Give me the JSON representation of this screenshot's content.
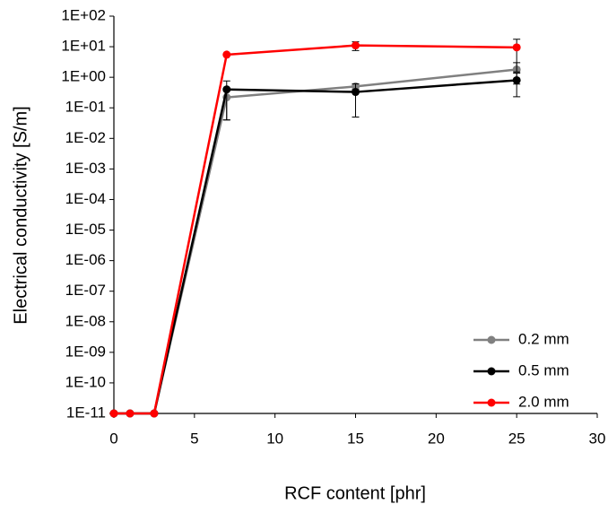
{
  "chart_data": {
    "type": "line",
    "x_label": "RCF content [phr]",
    "y_label": "Electrical conductivity [S/m]",
    "x": [
      0,
      1,
      2.5,
      7,
      15,
      25
    ],
    "xlim": [
      0,
      30
    ],
    "xticks": [
      0,
      5,
      10,
      15,
      20,
      25,
      30
    ],
    "ylim": [
      1e-11,
      100
    ],
    "log_y": true,
    "yticks": [
      {
        "value": 1e-11,
        "label": "1E-11"
      },
      {
        "value": 1e-10,
        "label": "1E-10"
      },
      {
        "value": 1e-09,
        "label": "1E-09"
      },
      {
        "value": 1e-08,
        "label": "1E-08"
      },
      {
        "value": 1e-07,
        "label": "1E-07"
      },
      {
        "value": 1e-06,
        "label": "1E-06"
      },
      {
        "value": 1e-05,
        "label": "1E-05"
      },
      {
        "value": 0.0001,
        "label": "1E-04"
      },
      {
        "value": 0.001,
        "label": "1E-03"
      },
      {
        "value": 0.01,
        "label": "1E-02"
      },
      {
        "value": 0.1,
        "label": "1E-01"
      },
      {
        "value": 1,
        "label": "1E+00"
      },
      {
        "value": 10,
        "label": "1E+01"
      },
      {
        "value": 100,
        "label": "1E+02"
      }
    ],
    "legend": "lower right",
    "series": [
      {
        "name": "0.2 mm",
        "color": "#808080",
        "values": [
          1e-11,
          1e-11,
          1e-11,
          0.22,
          0.5,
          1.8
        ],
        "errors": [
          null,
          null,
          null,
          0.18,
          0.1,
          1.2
        ]
      },
      {
        "name": "0.5 mm",
        "color": "#000000",
        "values": [
          1e-11,
          1e-11,
          1e-11,
          0.4,
          0.33,
          0.8
        ],
        "errors": [
          null,
          null,
          null,
          0.36,
          0.28,
          0.57
        ]
      },
      {
        "name": "2.0 mm",
        "color": "#ff0000",
        "values": [
          1e-11,
          1e-11,
          1e-11,
          5.5,
          11,
          9.5
        ],
        "errors": [
          null,
          null,
          null,
          null,
          3.5,
          8
        ]
      }
    ]
  }
}
